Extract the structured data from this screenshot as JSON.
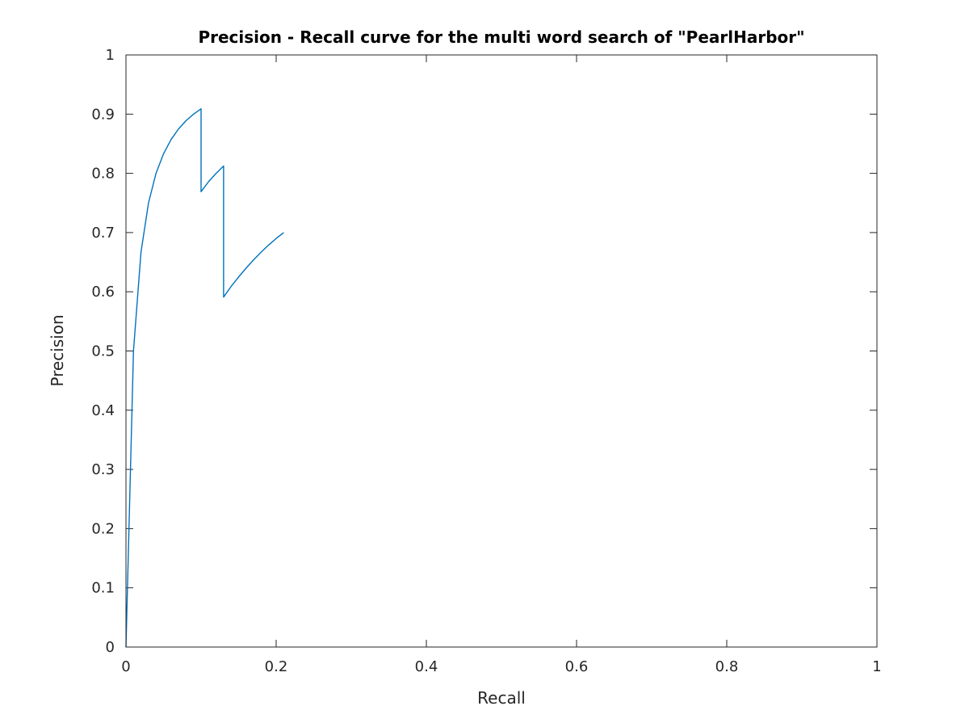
{
  "chart_data": {
    "type": "line",
    "title": "Precision - Recall curve for the multi word search of \"PearlHarbor\"",
    "xlabel": "Recall",
    "ylabel": "Precision",
    "xlim": [
      0,
      1
    ],
    "ylim": [
      0,
      1
    ],
    "xticks": [
      0,
      0.2,
      0.4,
      0.6,
      0.8,
      1
    ],
    "xtick_labels": [
      "0",
      "0.2",
      "0.4",
      "0.6",
      "0.8",
      "1"
    ],
    "yticks": [
      0,
      0.1,
      0.2,
      0.3,
      0.4,
      0.5,
      0.6,
      0.7,
      0.8,
      0.9,
      1
    ],
    "ytick_labels": [
      "0",
      "0.1",
      "0.2",
      "0.3",
      "0.4",
      "0.5",
      "0.6",
      "0.7",
      "0.8",
      "0.9",
      "1"
    ],
    "grid": false,
    "box": true,
    "series": [
      {
        "color": "#0072bd",
        "x": [
          0,
          0.01,
          0.02,
          0.03,
          0.04,
          0.05,
          0.06,
          0.07,
          0.08,
          0.09,
          0.1,
          0.1,
          0.11,
          0.12,
          0.13,
          0.13,
          0.14,
          0.15,
          0.16,
          0.17,
          0.18,
          0.19,
          0.2,
          0.21
        ],
        "y": [
          0,
          0.5,
          0.667,
          0.75,
          0.8,
          0.833,
          0.857,
          0.875,
          0.889,
          0.9,
          0.909,
          0.769,
          0.786,
          0.8,
          0.8125,
          0.591,
          0.609,
          0.625,
          0.64,
          0.654,
          0.667,
          0.679,
          0.69,
          0.7
        ]
      }
    ]
  }
}
